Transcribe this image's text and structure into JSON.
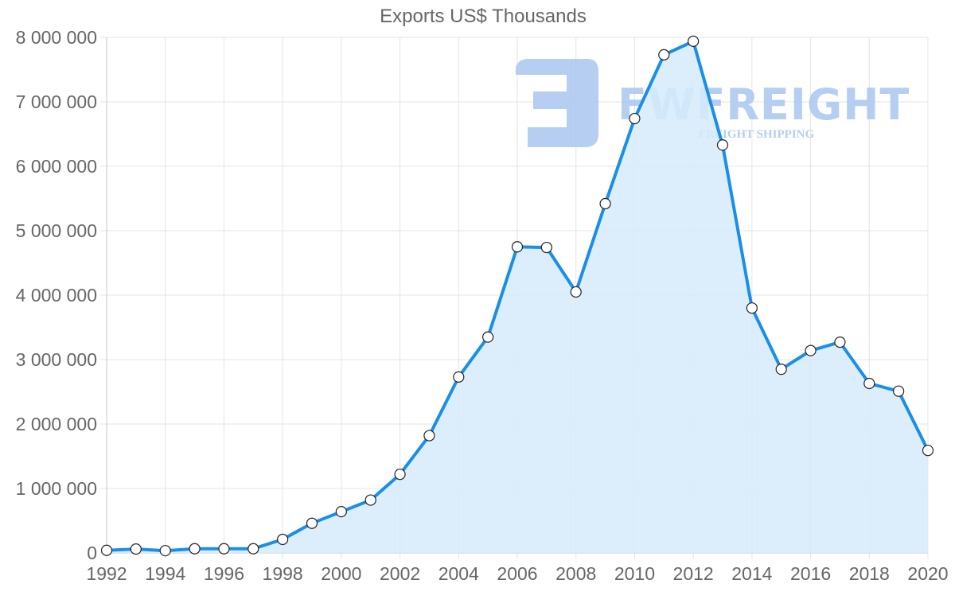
{
  "chart_data": {
    "type": "line",
    "title": "Exports US$ Thousands",
    "xlabel": "",
    "ylabel": "",
    "x": [
      1992,
      1993,
      1994,
      1995,
      1996,
      1997,
      1998,
      1999,
      2000,
      2001,
      2002,
      2003,
      2004,
      2005,
      2006,
      2007,
      2008,
      2009,
      2010,
      2011,
      2012,
      2013,
      2014,
      2015,
      2016,
      2017,
      2018,
      2019,
      2020
    ],
    "series": [
      {
        "name": "Exports US$ Thousands",
        "values": [
          40000,
          60000,
          35000,
          65000,
          65000,
          65000,
          210000,
          460000,
          640000,
          820000,
          1220000,
          1820000,
          2730000,
          3350000,
          4750000,
          4740000,
          4050000,
          5420000,
          6740000,
          7730000,
          7940000,
          6330000,
          3800000,
          2850000,
          3140000,
          3270000,
          2630000,
          2510000,
          1590000
        ]
      }
    ],
    "xlim": [
      1992,
      2020
    ],
    "ylim": [
      0,
      8000000
    ],
    "x_ticks": [
      "1992",
      "1994",
      "1996",
      "1998",
      "2000",
      "2002",
      "2004",
      "2006",
      "2008",
      "2010",
      "2012",
      "2014",
      "2016",
      "2018",
      "2020"
    ],
    "y_ticks": [
      "0",
      "1 000 000",
      "2 000 000",
      "3 000 000",
      "4 000 000",
      "5 000 000",
      "6 000 000",
      "7 000 000",
      "8 000 000"
    ],
    "grid": true,
    "legend": "none",
    "fill": "area"
  },
  "colors": {
    "line": "#1a8fe8",
    "fill": "#d6ebfc",
    "grid": "#e4e4e4",
    "axis": "#c8c8c8",
    "tick_text": "#666666",
    "point_fill": "#ffffff",
    "point_stroke": "#222222",
    "watermark": "#a9c6f0"
  },
  "watermark": {
    "brand": "FWFREIGHT",
    "tagline": "FREIGHT SHIPPING"
  }
}
